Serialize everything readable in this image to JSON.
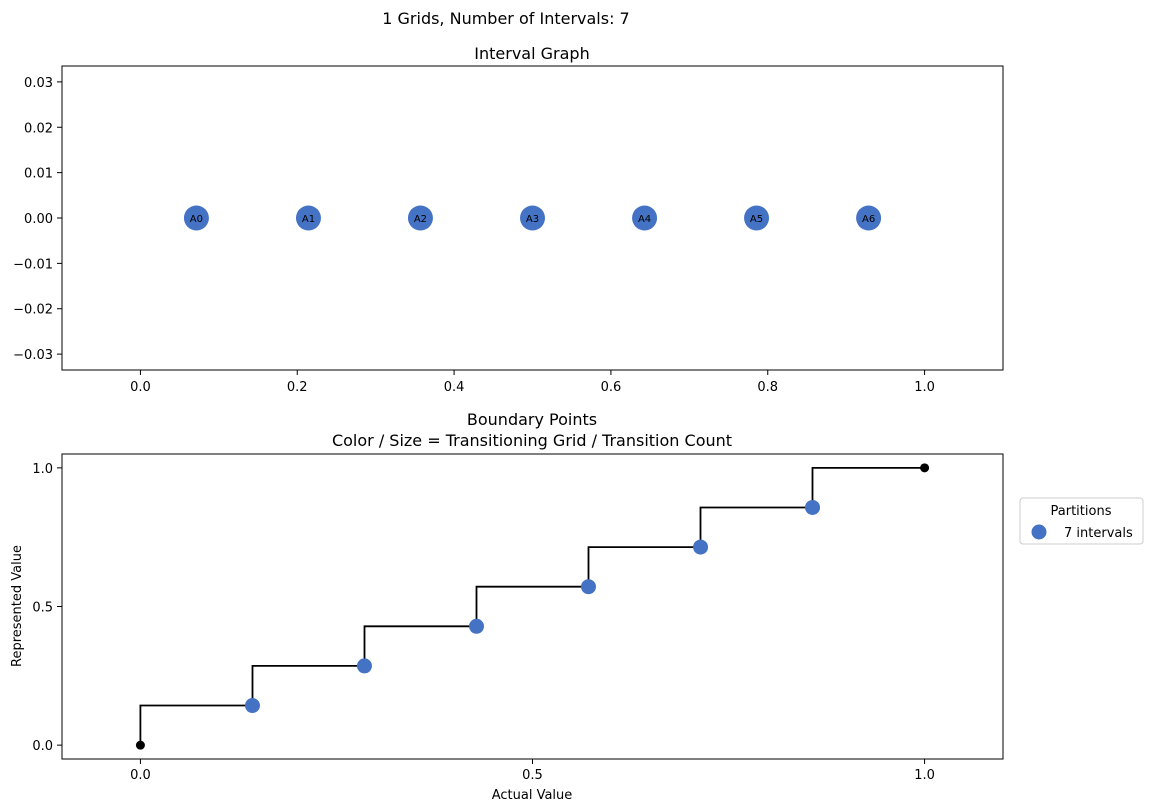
{
  "suptitle": "1 Grids, Number of Intervals: 7",
  "chart_data": [
    {
      "type": "scatter",
      "title": "Interval Graph",
      "xlabel": "",
      "ylabel": "",
      "xlim": [
        -0.1,
        1.1
      ],
      "ylim": [
        -0.0335,
        0.0335
      ],
      "xticks": [
        0.0,
        0.2,
        0.4,
        0.6,
        0.8,
        1.0
      ],
      "xtick_labels": [
        "0.0",
        "0.2",
        "0.4",
        "0.6",
        "0.8",
        "1.0"
      ],
      "yticks": [
        0.03,
        0.02,
        0.01,
        0.0,
        -0.01,
        -0.02,
        -0.03
      ],
      "ytick_labels": [
        "0.03",
        "0.02",
        "0.01",
        "0.00",
        "−0.01",
        "−0.02",
        "−0.03"
      ],
      "grid": false,
      "nodes": [
        {
          "label": "A0",
          "x": 0.0714,
          "y": 0
        },
        {
          "label": "A1",
          "x": 0.2143,
          "y": 0
        },
        {
          "label": "A2",
          "x": 0.3571,
          "y": 0
        },
        {
          "label": "A3",
          "x": 0.5,
          "y": 0
        },
        {
          "label": "A4",
          "x": 0.6429,
          "y": 0
        },
        {
          "label": "A5",
          "x": 0.7857,
          "y": 0
        },
        {
          "label": "A6",
          "x": 0.9286,
          "y": 0
        }
      ],
      "node_color": "#4472c4"
    },
    {
      "type": "line",
      "title": "Boundary Points",
      "subtitle": "Color / Size = Transitioning Grid / Transition Count",
      "xlabel": "Actual Value",
      "ylabel": "Represented Value",
      "xlim": [
        -0.1,
        1.1
      ],
      "ylim": [
        -0.05,
        1.05
      ],
      "xticks": [
        0.0,
        0.5,
        1.0
      ],
      "xtick_labels": [
        "0.0",
        "0.5",
        "1.0"
      ],
      "yticks": [
        0.0,
        0.5,
        1.0
      ],
      "ytick_labels": [
        "0.0",
        "0.5",
        "1.0"
      ],
      "grid": false,
      "step_x": [
        0.0,
        0.0,
        0.1429,
        0.1429,
        0.2857,
        0.2857,
        0.4286,
        0.4286,
        0.5714,
        0.5714,
        0.7143,
        0.7143,
        0.8571,
        0.8571,
        1.0
      ],
      "step_y": [
        0.0,
        0.1429,
        0.1429,
        0.2857,
        0.2857,
        0.4286,
        0.4286,
        0.5714,
        0.5714,
        0.7143,
        0.7143,
        0.8571,
        0.8571,
        1.0,
        1.0
      ],
      "endpoints": [
        {
          "x": 0.0,
          "y": 0.0
        },
        {
          "x": 1.0,
          "y": 1.0
        }
      ],
      "series": [
        {
          "name": "7 intervals",
          "color": "#4472c4",
          "x": [
            0.1429,
            0.2857,
            0.4286,
            0.5714,
            0.7143,
            0.8571
          ],
          "y": [
            0.1429,
            0.2857,
            0.4286,
            0.5714,
            0.7143,
            0.8571
          ]
        }
      ],
      "legend": {
        "title": "Partitions",
        "placement": "outside-right"
      }
    }
  ]
}
